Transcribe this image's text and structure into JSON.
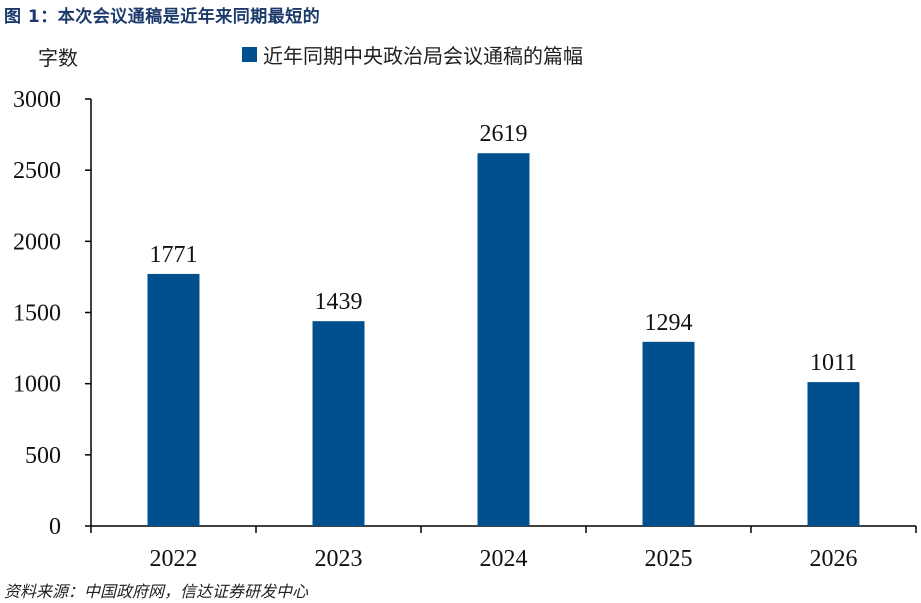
{
  "header": {
    "title": "图 1：本次会议通稿是近年来同期最短的"
  },
  "chart_data": {
    "type": "bar",
    "title": "本次会议通稿是近年来同期最短的",
    "figure_label": "图 1",
    "ylabel": "字数",
    "xlabel": "",
    "categories": [
      "2022",
      "2023",
      "2024",
      "2025",
      "2026"
    ],
    "series": [
      {
        "name": "近年同期中央政治局会议通稿的篇幅",
        "values": [
          1771,
          1439,
          2619,
          1294,
          1011
        ],
        "color": "#00508f"
      }
    ],
    "ylim": [
      0,
      3000
    ],
    "yticks": [
      0,
      500,
      1000,
      1500,
      2000,
      2500,
      3000
    ],
    "grid": false,
    "legend_position": "top",
    "data_labels": true
  },
  "source": "资料来源：中国政府网，信达证券研发中心"
}
